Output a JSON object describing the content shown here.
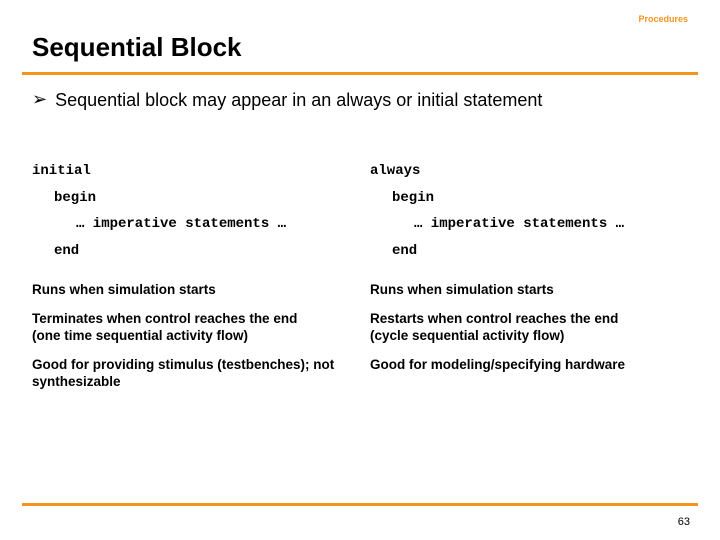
{
  "header": {
    "section_label": "Procedures",
    "title": "Sequential Block"
  },
  "bullet": {
    "arrow": "➢",
    "text": "Sequential block may appear in an always or initial statement"
  },
  "left": {
    "code": {
      "l1": "initial",
      "l2": "begin",
      "l3": "… imperative statements …",
      "l4": "end"
    },
    "desc": {
      "p1": "Runs when simulation starts",
      "p2": "Terminates when control reaches the end\n(one time sequential activity flow)",
      "p3": "Good for providing stimulus (testbenches); not synthesizable"
    }
  },
  "right": {
    "code": {
      "l1": "always",
      "l2": "begin",
      "l3": "… imperative statements …",
      "l4": "end"
    },
    "desc": {
      "p1": "Runs when simulation starts",
      "p2": "Restarts when control reaches the end\n(cycle sequential activity flow)",
      "p3": "Good for modeling/specifying hardware"
    }
  },
  "footer": {
    "page_number": "63"
  },
  "colors": {
    "accent": "#f7941d",
    "text": "#000000",
    "background": "#ffffff"
  }
}
